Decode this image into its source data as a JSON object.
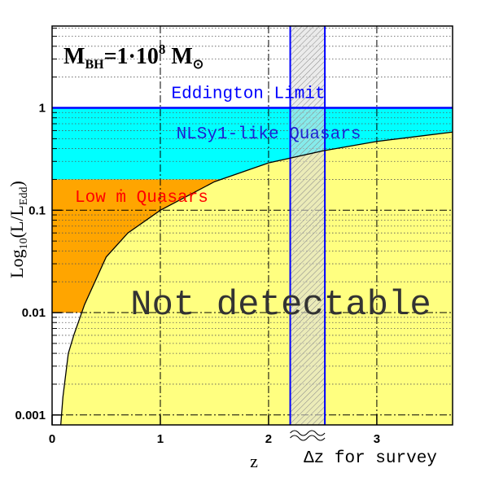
{
  "chart_data": {
    "type": "line",
    "title": {
      "main": "M",
      "sub": "BH",
      "mid": "=1·10",
      "sup": "8",
      "unit": " M",
      "unit_sub": "⊙"
    },
    "ylabel": {
      "main": "Log",
      "sub": "10",
      "mid": "(L/L",
      "sub2": "Edd",
      "end": ")"
    },
    "xlabel": "z",
    "xlim": [
      0,
      3.7
    ],
    "ylim": [
      0.0008,
      6.3
    ],
    "log_y": true,
    "grid": true,
    "xticks": [
      0,
      1,
      2,
      3
    ],
    "yticks": [
      0.001,
      0.01,
      0.1,
      1
    ],
    "yminor_ticks": [
      0.002,
      0.003,
      0.004,
      0.005,
      0.006,
      0.007,
      0.008,
      0.009,
      0.02,
      0.03,
      0.04,
      0.05,
      0.06,
      0.07,
      0.08,
      0.09,
      0.2,
      0.3,
      0.4,
      0.5,
      0.6,
      0.7,
      0.8,
      0.9,
      2,
      3,
      4,
      5,
      6
    ],
    "regions": [
      {
        "name": "NLSy1-like Quasars",
        "color": "#00ffff",
        "text_color": "#2020d0",
        "x": [
          0,
          3.7
        ],
        "y": [
          0.2,
          1
        ]
      },
      {
        "name": "Low ṁ Quasars",
        "color": "#ffa500",
        "text_color": "#ff0000",
        "x": [
          0,
          1.62
        ],
        "y": [
          0.01,
          0.2
        ]
      }
    ],
    "curve": {
      "name": "Not detectable",
      "color": "#000000",
      "fill": "#ffff80",
      "x": [
        0.08,
        0.1,
        0.15,
        0.2,
        0.3,
        0.5,
        0.7,
        1,
        1.5,
        2,
        2.5,
        3,
        3.7
      ],
      "values": [
        0.0008,
        0.0015,
        0.004,
        0.006,
        0.012,
        0.035,
        0.06,
        0.1,
        0.19,
        0.29,
        0.38,
        0.47,
        0.58
      ]
    },
    "eddington": {
      "label": "Eddington Limit",
      "value": 1,
      "color": "#0000ff"
    },
    "survey": {
      "label": "Δz for survey",
      "x": [
        2.2,
        2.52
      ],
      "color": "#0000ff"
    }
  }
}
